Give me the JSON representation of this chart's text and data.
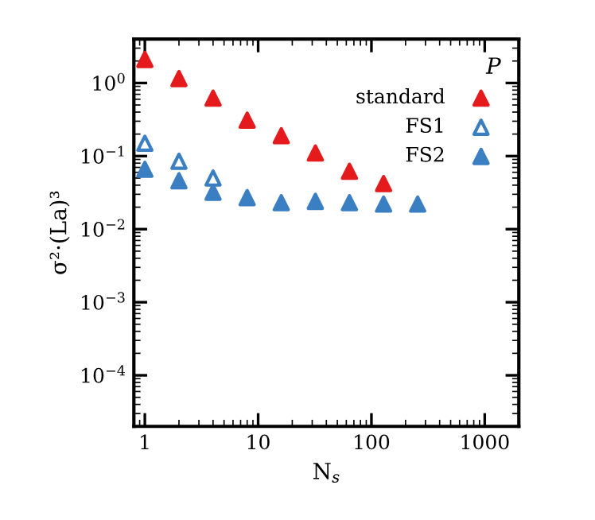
{
  "chart_data": {
    "type": "scatter",
    "xlabel": "N$_{s}$",
    "ylabel": "σ²·(La)³",
    "legend_title": "P",
    "log": "xy",
    "legend": "top right",
    "marker": "triangle",
    "grid": false,
    "x": [
      1,
      2,
      4,
      8,
      16,
      32,
      64,
      128,
      256
    ],
    "series": [
      {
        "name": "standard",
        "color": "#e41a1c",
        "values": [
          2.1,
          1.15,
          0.62,
          0.31,
          0.19,
          0.11,
          0.062,
          0.042,
          null
        ]
      },
      {
        "name": "FS1",
        "color": "#3a7fc1",
        "marker": "triangle-open",
        "values": [
          0.15,
          0.085,
          0.05,
          null,
          null,
          null,
          null,
          null,
          null
        ]
      },
      {
        "name": "FS2",
        "color": "#3a7fc1",
        "values": [
          0.066,
          0.046,
          0.032,
          0.027,
          0.023,
          0.024,
          0.023,
          0.022,
          0.022
        ]
      }
    ],
    "xlim": [
      0.8,
      2000
    ],
    "ylim": [
      2e-05,
      4
    ],
    "xticks": [
      1,
      10,
      100,
      1000
    ],
    "yticks": [
      {
        "value": 0.0001,
        "label": "10$^{−4}$"
      },
      {
        "value": 0.001,
        "label": "10$^{−3}$"
      },
      {
        "value": 0.01,
        "label": "10$^{−2}$"
      },
      {
        "value": 0.1,
        "label": "10$^{−1}$"
      },
      {
        "value": 1,
        "label": "10$^{0}$"
      }
    ]
  }
}
